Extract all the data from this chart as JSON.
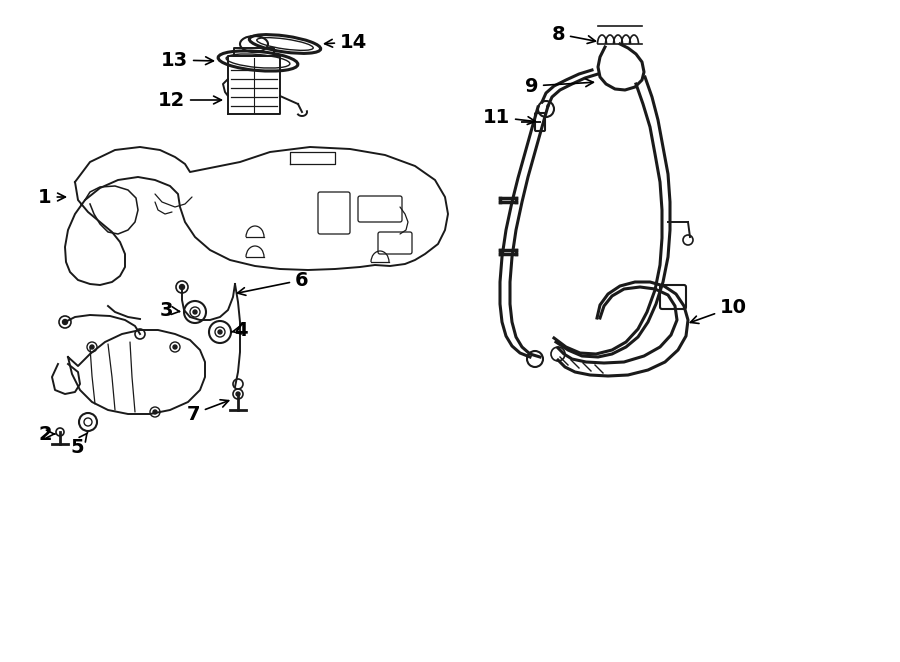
{
  "bg_color": "#ffffff",
  "lc": "#1a1a1a",
  "lw": 1.4,
  "lw2": 2.2,
  "fs": 14
}
